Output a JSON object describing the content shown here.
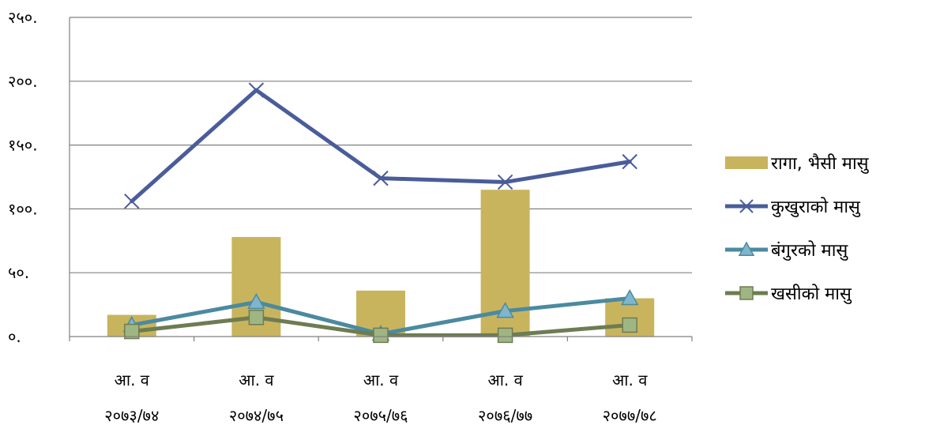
{
  "chart_data": {
    "type": "bar",
    "categories": [
      [
        "आ. व",
        "२०७३/७४"
      ],
      [
        "आ. व",
        "२०७४/७५"
      ],
      [
        "आ. व",
        "२०७५/७६"
      ],
      [
        "आ. व",
        "२०७६/७७"
      ],
      [
        "आ. व",
        "२०७७/७८"
      ]
    ],
    "y_tick_labels": [
      "०.",
      "५०.",
      "१००.",
      "१५०.",
      "२००.",
      "२५०."
    ],
    "ylim": [
      0,
      250
    ],
    "grid": true,
    "legend_position": "right",
    "series": [
      {
        "name": "रागा, भैसी मासु",
        "kind": "bar",
        "marker": "",
        "color": "#c9b45e",
        "values": [
          17,
          78,
          36,
          115,
          30
        ]
      },
      {
        "name": "कुखुराको मासु",
        "kind": "line",
        "marker": "x",
        "color": "#4a5c9a",
        "values": [
          106,
          193,
          124,
          121,
          137
        ]
      },
      {
        "name": "बंगुरको मासु",
        "kind": "line",
        "marker": "triangle",
        "color": "#4b8aa0",
        "values": [
          9,
          27,
          2,
          20,
          30
        ]
      },
      {
        "name": "खसीको मासु",
        "kind": "line",
        "marker": "square",
        "color": "#6d7c52",
        "values": [
          4,
          15,
          1,
          1,
          9
        ]
      }
    ]
  }
}
